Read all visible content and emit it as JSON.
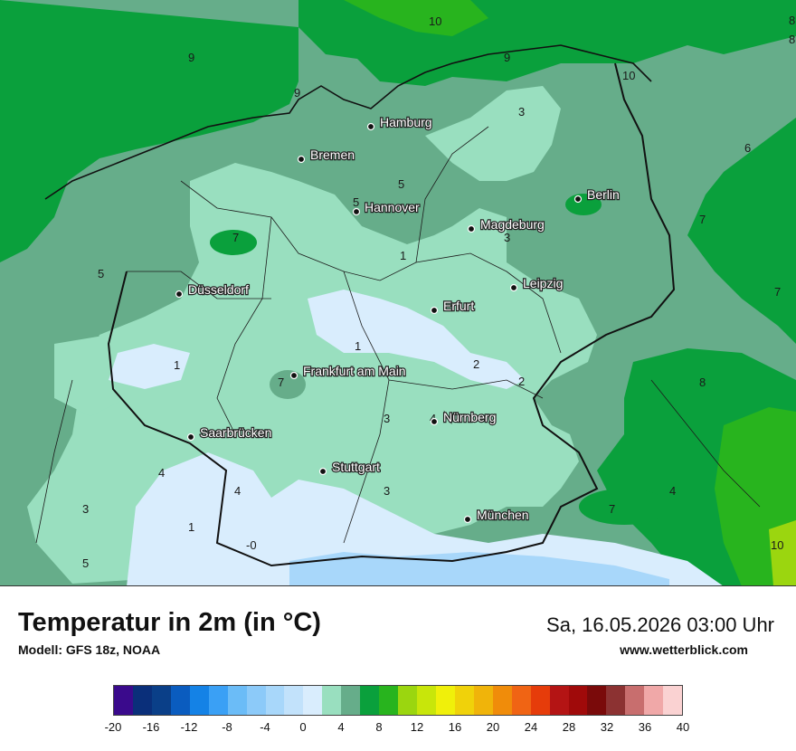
{
  "title": "Temperatur in 2m (in °C)",
  "model": "Modell: GFS 18z, NOAA",
  "datetime": "Sa, 16.05.2026 03:00 Uhr",
  "website": "www.wetterblick.com",
  "cities": [
    {
      "name": "Hamburg"
    },
    {
      "name": "Bremen"
    },
    {
      "name": "Hannover"
    },
    {
      "name": "Berlin"
    },
    {
      "name": "Magdeburg"
    },
    {
      "name": "Düsseldorf"
    },
    {
      "name": "Leipzig"
    },
    {
      "name": "Erfurt"
    },
    {
      "name": "Frankfurt am Main"
    },
    {
      "name": "Nürnberg"
    },
    {
      "name": "Saarbrücken"
    },
    {
      "name": "Stuttgart"
    },
    {
      "name": "München"
    }
  ],
  "contour_labels": [
    "9",
    "10",
    "9",
    "9",
    "10",
    "8",
    "3",
    "6",
    "5",
    "5",
    "7",
    "7",
    "7",
    "5",
    "1",
    "3",
    "1",
    "1",
    "2",
    "2",
    "7",
    "8",
    "3",
    "4",
    "4",
    "4",
    "3",
    "4",
    "3",
    "1",
    "-0",
    "5",
    "7",
    "10",
    "8"
  ],
  "legend": {
    "colors": [
      "#3a0a8c",
      "#0a2f7a",
      "#0a3f88",
      "#0a5cbf",
      "#1482e6",
      "#3aa0f5",
      "#6bbcf7",
      "#8ccaf9",
      "#a8d7fa",
      "#c2e2fb",
      "#d9edfd",
      "#99dfbf",
      "#66ad8a",
      "#0aa03c",
      "#28b41e",
      "#9bd60f",
      "#c8e60a",
      "#f0f00a",
      "#f0d20a",
      "#f0b40a",
      "#f08c0a",
      "#f06414",
      "#e63c0a",
      "#b41414",
      "#a00a0a",
      "#7a0a0a",
      "#8c3232",
      "#c86e6e",
      "#f0a8a8",
      "#fad2d2"
    ],
    "ticks": [
      "-20",
      "-16",
      "-12",
      "-8",
      "-4",
      "0",
      "4",
      "8",
      "12",
      "16",
      "20",
      "24",
      "28",
      "32",
      "36",
      "40"
    ]
  }
}
